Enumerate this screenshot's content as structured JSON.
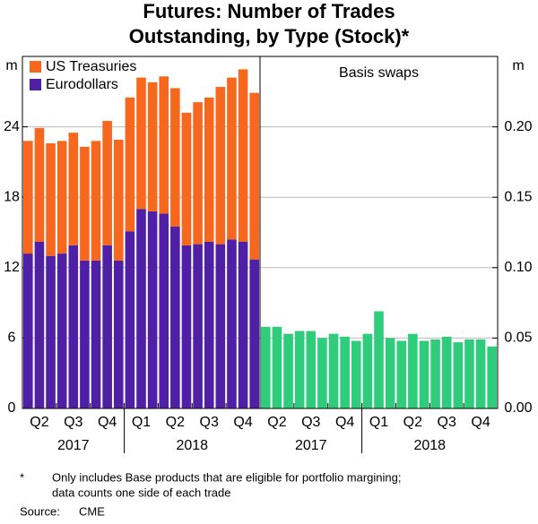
{
  "title": [
    "Futures: Number of Trades",
    "Outstanding, by Type (Stock)*"
  ],
  "chart_data": [
    {
      "type": "stacked-bar",
      "y_label": "m",
      "categories": [
        null,
        "Q2",
        null,
        null,
        "Q3",
        null,
        null,
        "Q4",
        null,
        null,
        "Q1",
        null,
        null,
        "Q2",
        null,
        null,
        "Q3",
        null,
        null,
        "Q4",
        null
      ],
      "years": [
        "2017",
        "2018"
      ],
      "ylim": [
        0,
        30
      ],
      "yticks": [
        0,
        6,
        12,
        18,
        24
      ],
      "grid": true,
      "legend": "top-left",
      "series": [
        {
          "name": "US Treasuries",
          "color": "#f7681e",
          "values": [
            9.6,
            9.7,
            9.6,
            9.6,
            9.6,
            9.7,
            10.2,
            10.6,
            10.3,
            11.4,
            11.2,
            11.0,
            11.7,
            11.8,
            11.3,
            12.1,
            12.3,
            13.4,
            13.8,
            14.7,
            14.2
          ]
        },
        {
          "name": "Eurodollars",
          "color": "#4f1fa6",
          "values": [
            13.2,
            14.2,
            13.0,
            13.2,
            13.9,
            12.6,
            12.6,
            13.9,
            12.6,
            15.1,
            17.0,
            16.8,
            16.6,
            15.5,
            13.9,
            14.0,
            14.2,
            14.0,
            14.4,
            14.2,
            12.7
          ]
        }
      ]
    },
    {
      "type": "bar",
      "title": "Basis swaps",
      "y_label": "m",
      "categories": [
        null,
        "Q2",
        null,
        null,
        "Q3",
        null,
        null,
        "Q4",
        null,
        null,
        "Q1",
        null,
        null,
        "Q2",
        null,
        null,
        "Q3",
        null,
        null,
        "Q4",
        null
      ],
      "years": [
        "2017",
        "2018"
      ],
      "ylim": [
        0,
        0.25
      ],
      "yticks": [
        {
          "value": 0,
          "label": "0.00"
        },
        {
          "value": 0.05,
          "label": "0.05"
        },
        {
          "value": 0.1,
          "label": "0.10"
        },
        {
          "value": 0.15,
          "label": "0.15"
        },
        {
          "value": 0.2,
          "label": "0.20"
        }
      ],
      "grid": true,
      "color": "#2fcc7c",
      "values": [
        0.058,
        0.058,
        0.053,
        0.055,
        0.055,
        0.05,
        0.053,
        0.051,
        0.048,
        0.053,
        0.069,
        0.05,
        0.048,
        0.053,
        0.048,
        0.049,
        0.051,
        0.047,
        0.049,
        0.049,
        0.044
      ]
    }
  ],
  "footnote": {
    "marker": "*",
    "lines": [
      "Only includes Base products that are eligible for portfolio margining;",
      "data counts one side of each trade"
    ]
  },
  "source": {
    "label": "Source:",
    "text": "CME"
  }
}
